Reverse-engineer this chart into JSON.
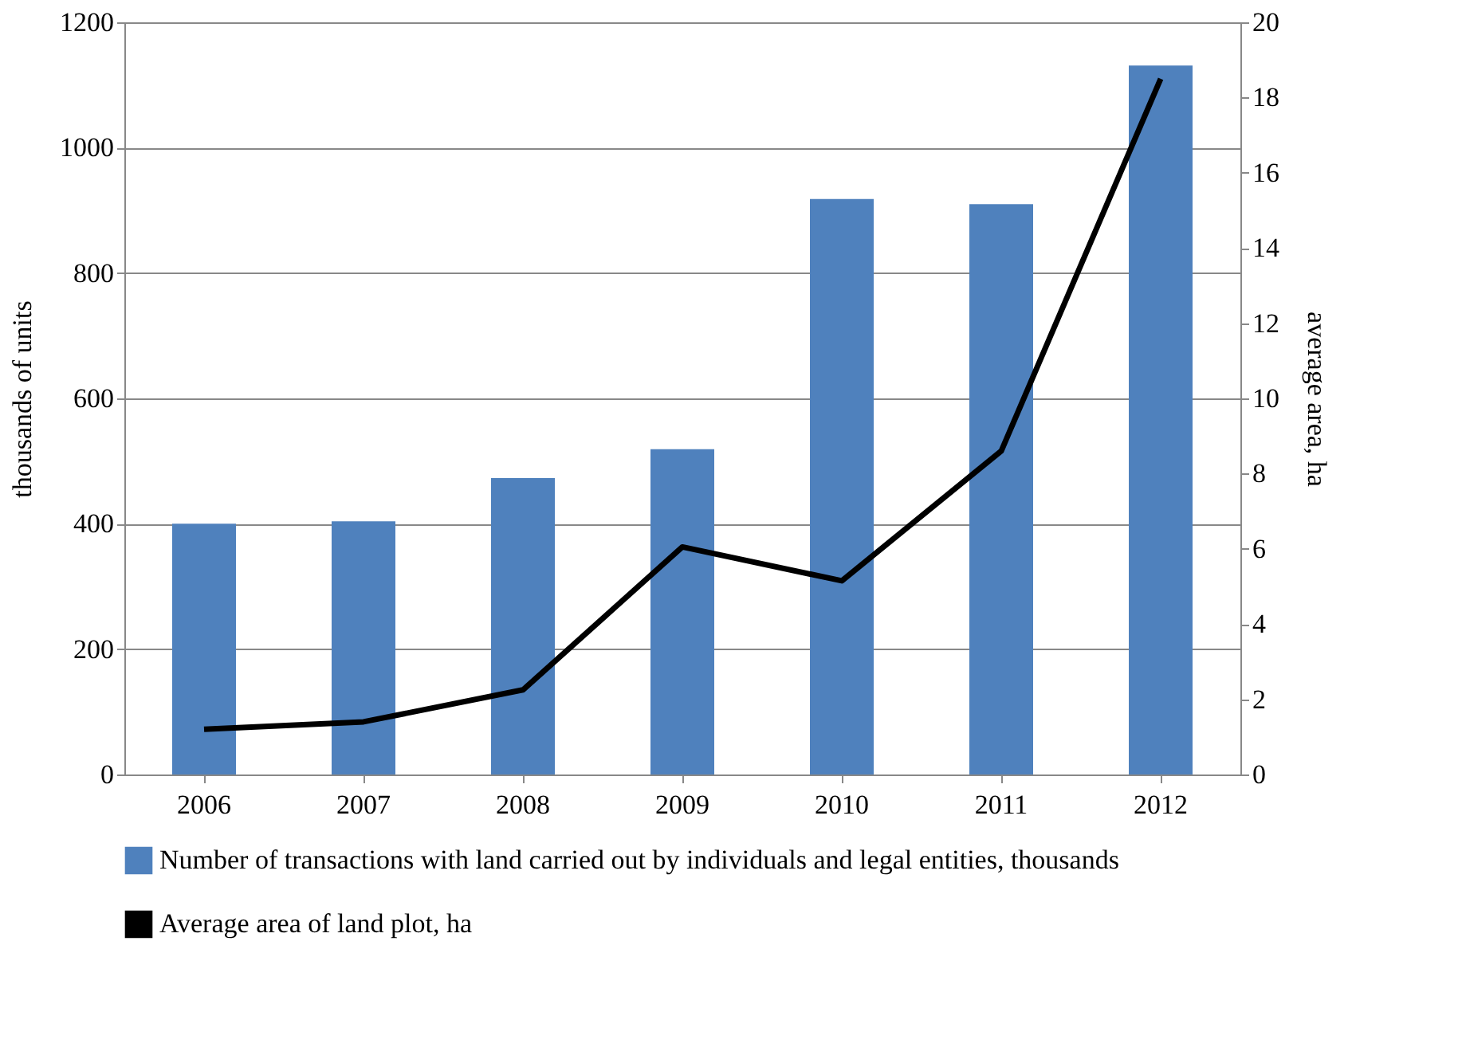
{
  "chart_data": {
    "type": "bar",
    "ylabel": "thousands of units",
    "y2label": "average area, ha",
    "categories": [
      "2006",
      "2007",
      "2008",
      "2009",
      "2010",
      "2011",
      "2012"
    ],
    "series": [
      {
        "name": "Number of transactions with land carried out by individuals and legal entities, thousands",
        "color": "#4f81bd",
        "values": [
          400,
          404,
          473,
          519,
          918,
          910,
          1131
        ]
      },
      {
        "name": "Average area of land plot, ha",
        "type": "line",
        "axis": "y2",
        "color": "#000000",
        "values": [
          1.2,
          1.4,
          2.25,
          6.05,
          5.15,
          8.6,
          18.5
        ]
      }
    ],
    "ylim": [
      0,
      1200
    ],
    "yticks": [
      0,
      200,
      400,
      600,
      800,
      1000,
      1200
    ],
    "y2lim": [
      0,
      20
    ],
    "y2ticks": [
      0,
      2,
      4,
      6,
      8,
      10,
      12,
      14,
      16,
      18,
      20
    ],
    "grid": "y",
    "legend": "bottom",
    "marker": "none",
    "line_style": "solid"
  }
}
